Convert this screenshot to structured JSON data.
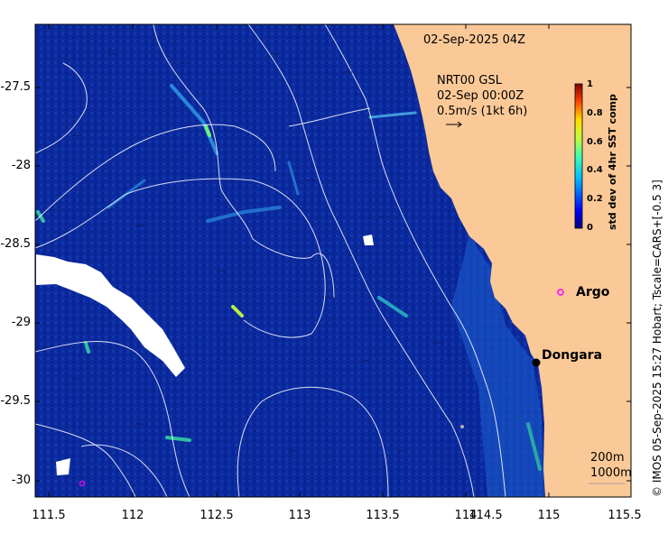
{
  "map": {
    "timestamp": "02-Sep-2025 04Z",
    "current_info": {
      "line1": "NRT00 GSL",
      "line2": "02-Sep 00:00Z",
      "line3": "0.5m/s (1kt 6h)"
    },
    "places": [
      {
        "name": "Argo",
        "type": "argo-float"
      },
      {
        "name": "Dongara",
        "type": "town"
      }
    ],
    "contours": {
      "line1": "200m",
      "line2": "1000m"
    },
    "axes": {
      "x_ticks": [
        "111.5",
        "112",
        "112.5",
        "113",
        "113.5",
        "114",
        "114.5",
        "115",
        "115.5"
      ],
      "y_ticks": [
        "-27.5",
        "-28",
        "-28.5",
        "-29",
        "-29.5",
        "-30"
      ]
    },
    "colorbar": {
      "title": "std dev of 4hr SST comp",
      "ticks": [
        "1",
        "0.8",
        "0.6",
        "0.4",
        "0.2",
        "0"
      ]
    },
    "credit": "© IMOS 05-Sep-2025 15:27 Hobart; Tscale=CARS+[-0.5 3]",
    "colors": {
      "ocean": "#0b2a9e",
      "land": "#fbc997",
      "no_data": "#ffffff",
      "argo_marker": "#ff00ff",
      "town_marker": "#000000"
    }
  }
}
